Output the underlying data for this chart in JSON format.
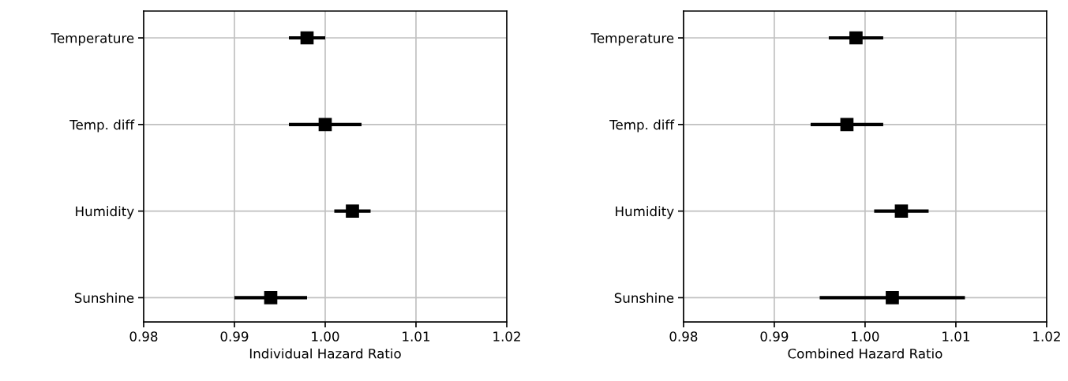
{
  "chart_data": [
    {
      "type": "scatter",
      "orientation": "horizontal",
      "xlabel": "Individual Hazard Ratio",
      "categories": [
        "Temperature",
        "Temp. diff",
        "Humidity",
        "Sunshine"
      ],
      "series": [
        {
          "color": "#000000",
          "values": [
            0.998,
            1.0,
            1.003,
            0.994
          ],
          "errors": [
            [
              0.996,
              1.0
            ],
            [
              0.996,
              1.004
            ],
            [
              1.001,
              1.005
            ],
            [
              0.99,
              0.998
            ]
          ]
        }
      ],
      "marker": "square",
      "grid": true,
      "xlim": [
        0.98,
        1.02
      ],
      "xticks": [
        0.98,
        0.99,
        {
          "value": 1.0,
          "label": "1.00"
        },
        1.01,
        1.02
      ]
    },
    {
      "type": "scatter",
      "orientation": "horizontal",
      "xlabel": "Combined Hazard Ratio",
      "categories": [
        "Temperature",
        "Temp. diff",
        "Humidity",
        "Sunshine"
      ],
      "series": [
        {
          "color": "#000000",
          "values": [
            0.999,
            0.998,
            1.004,
            1.003
          ],
          "errors": [
            [
              0.996,
              1.002
            ],
            [
              0.994,
              1.002
            ],
            [
              1.001,
              1.007
            ],
            [
              0.995,
              1.011
            ]
          ]
        }
      ],
      "marker": "square",
      "grid": true,
      "xlim": [
        0.98,
        1.02
      ],
      "xticks": [
        0.98,
        0.99,
        {
          "value": 1.0,
          "label": "1.00"
        },
        1.01,
        1.02
      ]
    }
  ]
}
